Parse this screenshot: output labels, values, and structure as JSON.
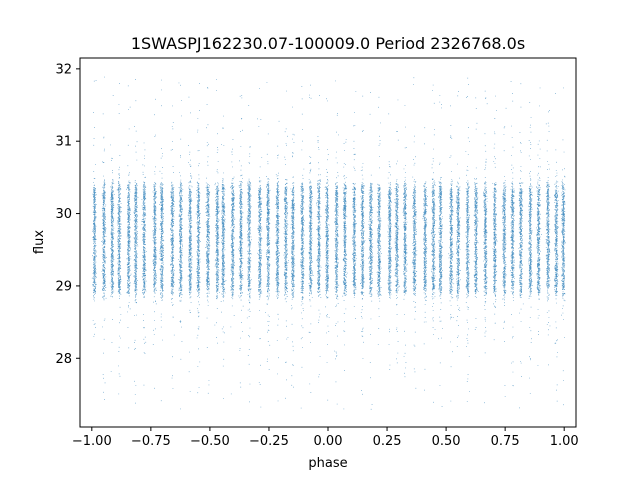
{
  "chart_data": {
    "type": "scatter",
    "title": "1SWASPJ162230.07-100009.0 Period 2326768.0s",
    "xlabel": "phase",
    "ylabel": "flux",
    "xlim": [
      -1.05,
      1.05
    ],
    "ylim": [
      27.05,
      32.15
    ],
    "xticks": [
      -1.0,
      -0.75,
      -0.5,
      -0.25,
      0.0,
      0.25,
      0.5,
      0.75,
      1.0
    ],
    "xtick_labels": [
      "−1.00",
      "−0.75",
      "−0.50",
      "−0.25",
      "0.00",
      "0.25",
      "0.50",
      "0.75",
      "1.00"
    ],
    "yticks": [
      28,
      29,
      30,
      31,
      32
    ],
    "ytick_labels": [
      "28",
      "29",
      "30",
      "31",
      "32"
    ],
    "grid": false,
    "legend": "none",
    "marker_color": "#1f77b4",
    "series": [
      {
        "cluster_phases": [
          -0.99,
          -0.95,
          -0.915,
          -0.885,
          -0.845,
          -0.815,
          -0.78,
          -0.735,
          -0.705,
          -0.66,
          -0.625,
          -0.585,
          -0.55,
          -0.51,
          -0.47,
          -0.445,
          -0.405,
          -0.37,
          -0.335,
          -0.29,
          -0.255,
          -0.215,
          -0.18,
          -0.15,
          -0.11,
          -0.075,
          -0.04,
          -0.005,
          0.035,
          0.07,
          0.11,
          0.145,
          0.18,
          0.215,
          0.26,
          0.29,
          0.325,
          0.365,
          0.41,
          0.445,
          0.475,
          0.52,
          0.55,
          0.59,
          0.625,
          0.665,
          0.705,
          0.745,
          0.78,
          0.815,
          0.855,
          0.89,
          0.93,
          0.965,
          0.995
        ],
        "core_flux_range": [
          28.9,
          30.4
        ],
        "outlier_flux_range": [
          27.3,
          31.9
        ],
        "points_per_cluster": 520
      }
    ]
  }
}
